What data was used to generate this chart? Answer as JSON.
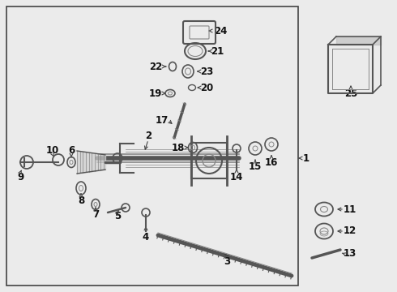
{
  "bg_color": "#ebebeb",
  "fig_width": 4.9,
  "fig_height": 3.6,
  "dpi": 100,
  "label_fontsize": 8.5,
  "label_color": "#111111",
  "line_color": "#444444",
  "part_color": "#555555",
  "light_color": "#888888"
}
